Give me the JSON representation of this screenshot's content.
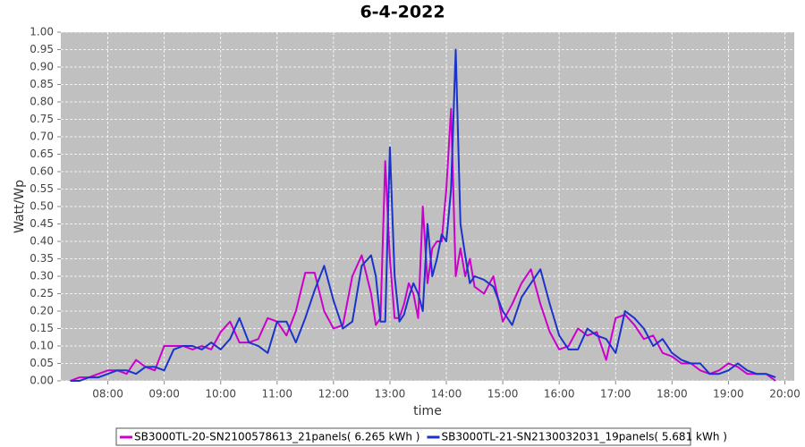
{
  "chart_data": {
    "type": "line",
    "title": "6-4-2022",
    "xlabel": "time",
    "ylabel": "Watt/Wp",
    "x": [
      "07:20",
      "07:30",
      "07:40",
      "07:50",
      "08:00",
      "08:10",
      "08:20",
      "08:30",
      "08:40",
      "08:50",
      "09:00",
      "09:10",
      "09:20",
      "09:30",
      "09:40",
      "09:50",
      "10:00",
      "10:10",
      "10:20",
      "10:30",
      "10:40",
      "10:50",
      "11:00",
      "11:10",
      "11:20",
      "11:30",
      "11:40",
      "11:50",
      "12:00",
      "12:10",
      "12:20",
      "12:30",
      "12:40",
      "12:45",
      "12:50",
      "12:55",
      "13:00",
      "13:05",
      "13:10",
      "13:15",
      "13:20",
      "13:25",
      "13:30",
      "13:35",
      "13:40",
      "13:45",
      "13:50",
      "13:55",
      "14:00",
      "14:05",
      "14:10",
      "14:15",
      "14:20",
      "14:25",
      "14:30",
      "14:40",
      "14:50",
      "15:00",
      "15:10",
      "15:20",
      "15:30",
      "15:40",
      "15:50",
      "16:00",
      "16:10",
      "16:20",
      "16:30",
      "16:40",
      "16:50",
      "17:00",
      "17:10",
      "17:20",
      "17:30",
      "17:40",
      "17:50",
      "18:00",
      "18:10",
      "18:20",
      "18:30",
      "18:40",
      "18:50",
      "19:00",
      "19:10",
      "19:20",
      "19:30",
      "19:40",
      "19:50"
    ],
    "series": [
      {
        "name": "SB3000TL-20-SN2100578613_21panels( 6.265 kWh )",
        "color": "#cc00cc",
        "values": [
          0,
          0.01,
          0.01,
          0.02,
          0.03,
          0.03,
          0.02,
          0.06,
          0.04,
          0.03,
          0.1,
          0.1,
          0.1,
          0.09,
          0.1,
          0.09,
          0.14,
          0.17,
          0.11,
          0.11,
          0.12,
          0.18,
          0.17,
          0.13,
          0.2,
          0.31,
          0.31,
          0.2,
          0.15,
          0.16,
          0.3,
          0.36,
          0.25,
          0.16,
          0.18,
          0.63,
          0.35,
          0.18,
          0.18,
          0.22,
          0.28,
          0.25,
          0.18,
          0.5,
          0.28,
          0.38,
          0.4,
          0.4,
          0.55,
          0.78,
          0.3,
          0.38,
          0.3,
          0.35,
          0.27,
          0.25,
          0.3,
          0.17,
          0.22,
          0.28,
          0.32,
          0.22,
          0.14,
          0.09,
          0.1,
          0.15,
          0.13,
          0.14,
          0.06,
          0.18,
          0.19,
          0.16,
          0.12,
          0.13,
          0.08,
          0.07,
          0.05,
          0.05,
          0.03,
          0.02,
          0.03,
          0.05,
          0.04,
          0.02,
          0.02,
          0.02,
          0
        ]
      },
      {
        "name": "SB3000TL-21-SN2130032031_19panels( 5.681 kWh )",
        "color": "#1a33cc",
        "values": [
          0,
          0,
          0.01,
          0.01,
          0.02,
          0.03,
          0.03,
          0.02,
          0.04,
          0.04,
          0.03,
          0.09,
          0.1,
          0.1,
          0.09,
          0.11,
          0.09,
          0.12,
          0.18,
          0.11,
          0.1,
          0.08,
          0.17,
          0.17,
          0.11,
          0.18,
          0.26,
          0.33,
          0.23,
          0.15,
          0.17,
          0.33,
          0.36,
          0.3,
          0.17,
          0.17,
          0.67,
          0.3,
          0.17,
          0.19,
          0.24,
          0.28,
          0.25,
          0.2,
          0.45,
          0.3,
          0.35,
          0.42,
          0.4,
          0.55,
          0.95,
          0.45,
          0.36,
          0.28,
          0.3,
          0.29,
          0.27,
          0.2,
          0.16,
          0.24,
          0.28,
          0.32,
          0.22,
          0.13,
          0.09,
          0.09,
          0.15,
          0.13,
          0.12,
          0.08,
          0.2,
          0.18,
          0.15,
          0.1,
          0.12,
          0.08,
          0.06,
          0.05,
          0.05,
          0.02,
          0.02,
          0.03,
          0.05,
          0.03,
          0.02,
          0.02,
          0.01
        ]
      }
    ],
    "xlim": [
      "07:10",
      "20:10"
    ],
    "xticks": [
      "08:00",
      "09:00",
      "10:00",
      "11:00",
      "12:00",
      "13:00",
      "14:00",
      "15:00",
      "16:00",
      "17:00",
      "18:00",
      "19:00",
      "20:00"
    ],
    "ylim": [
      0,
      1
    ],
    "yticks": [
      {
        "value": 0,
        "label": "0.00"
      },
      {
        "value": 0.05,
        "label": "0.05"
      },
      {
        "value": 0.1,
        "label": "0.10"
      },
      {
        "value": 0.15,
        "label": "0.15"
      },
      {
        "value": 0.2,
        "label": "0.20"
      },
      {
        "value": 0.25,
        "label": "0.25"
      },
      {
        "value": 0.3,
        "label": "0.30"
      },
      {
        "value": 0.35,
        "label": "0.35"
      },
      {
        "value": 0.4,
        "label": "0.40"
      },
      {
        "value": 0.45,
        "label": "0.45"
      },
      {
        "value": 0.5,
        "label": "0.50"
      },
      {
        "value": 0.55,
        "label": "0.55"
      },
      {
        "value": 0.6,
        "label": "0.60"
      },
      {
        "value": 0.65,
        "label": "0.65"
      },
      {
        "value": 0.7,
        "label": "0.70"
      },
      {
        "value": 0.75,
        "label": "0.75"
      },
      {
        "value": 0.8,
        "label": "0.80"
      },
      {
        "value": 0.85,
        "label": "0.85"
      },
      {
        "value": 0.9,
        "label": "0.90"
      },
      {
        "value": 0.95,
        "label": "0.95"
      },
      {
        "value": 1,
        "label": "1.00"
      }
    ],
    "grid": true
  }
}
